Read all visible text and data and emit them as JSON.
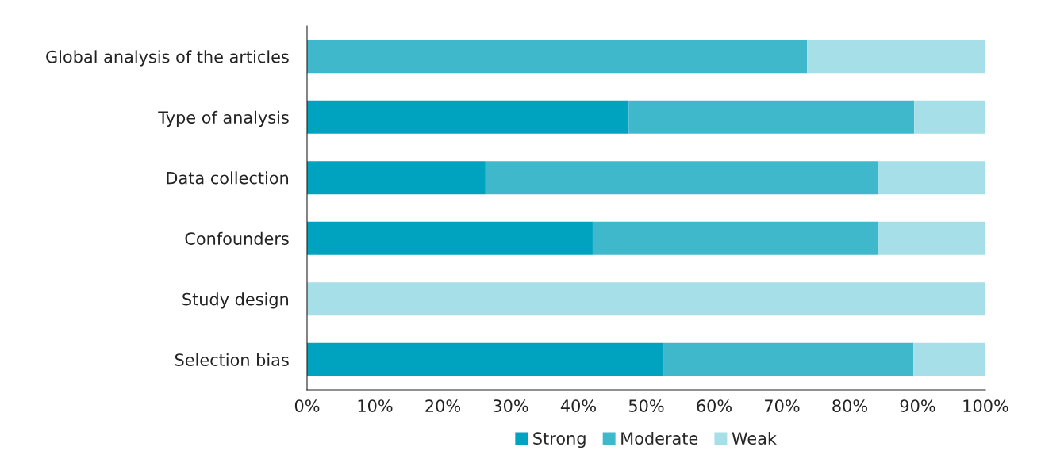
{
  "chart_data": {
    "type": "bar",
    "orientation": "horizontal",
    "stacked": true,
    "categories": [
      "Global analysis of the articles",
      "Type of analysis",
      "Data collection",
      "Confounders",
      "Study design",
      "Selection bias"
    ],
    "series": [
      {
        "name": "Strong",
        "color": "#00a3bf",
        "values": [
          0,
          47.4,
          26.3,
          42.1,
          0,
          52.6
        ]
      },
      {
        "name": "Moderate",
        "color": "#40b8cc",
        "values": [
          73.7,
          42.1,
          57.9,
          42.1,
          0,
          36.8
        ]
      },
      {
        "name": "Weak",
        "color": "#a6dfe7",
        "values": [
          26.3,
          10.5,
          15.8,
          15.8,
          100,
          10.6
        ]
      }
    ],
    "xlim": [
      0,
      100
    ],
    "xticks": [
      {
        "value": 0,
        "label": "0%"
      },
      {
        "value": 10,
        "label": "10%"
      },
      {
        "value": 20,
        "label": "20%"
      },
      {
        "value": 30,
        "label": "30%"
      },
      {
        "value": 40,
        "label": "40%"
      },
      {
        "value": 50,
        "label": "50%"
      },
      {
        "value": 60,
        "label": "60%"
      },
      {
        "value": 70,
        "label": "70%"
      },
      {
        "value": 80,
        "label": "80%"
      },
      {
        "value": 90,
        "label": "90%"
      },
      {
        "value": 100,
        "label": "100%"
      }
    ],
    "legend": "bottom",
    "grid": false
  }
}
